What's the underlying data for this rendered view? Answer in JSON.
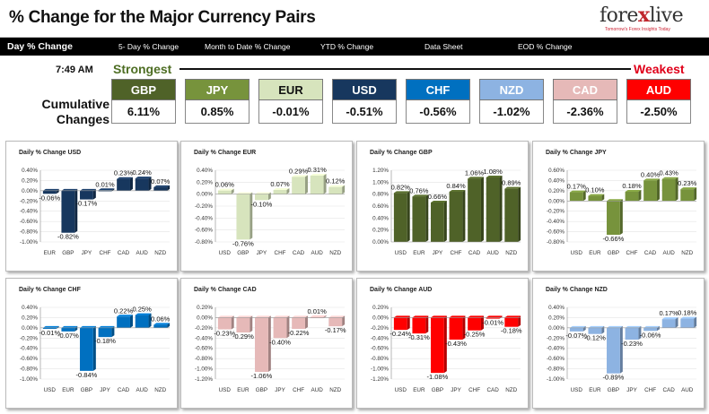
{
  "header": {
    "title": "% Change for the Major Currency Pairs",
    "logo_text_a": "fore",
    "logo_text_x": "x",
    "logo_text_b": "live",
    "logo_tagline": "Tomorrow's Forex Insights Today"
  },
  "nav": [
    {
      "label": "Day % Change",
      "active": true
    },
    {
      "label": "5- Day % Change",
      "active": false
    },
    {
      "label": "Month to Date % Change",
      "active": false
    },
    {
      "label": "YTD % Change",
      "active": false
    },
    {
      "label": "Data Sheet",
      "active": false
    },
    {
      "label": "EOD % Change",
      "active": false
    }
  ],
  "summary": {
    "time": "7:49 AM",
    "strongest_label": "Strongest",
    "weakest_label": "Weakest",
    "cumulative_label": "Cumulative Changes",
    "pairs": [
      {
        "code": "GBP",
        "value": "6.11%",
        "bg": "#4f6228",
        "fg": "#ffffff"
      },
      {
        "code": "JPY",
        "value": "0.85%",
        "bg": "#77933c",
        "fg": "#ffffff"
      },
      {
        "code": "EUR",
        "value": "-0.01%",
        "bg": "#d7e4bd",
        "fg": "#111111"
      },
      {
        "code": "USD",
        "value": "-0.51%",
        "bg": "#17375e",
        "fg": "#ffffff"
      },
      {
        "code": "CHF",
        "value": "-0.56%",
        "bg": "#0070c0",
        "fg": "#ffffff"
      },
      {
        "code": "NZD",
        "value": "-1.02%",
        "bg": "#8db3e2",
        "fg": "#ffffff"
      },
      {
        "code": "CAD",
        "value": "-2.36%",
        "bg": "#e6b9b8",
        "fg": "#ffffff"
      },
      {
        "code": "AUD",
        "value": "-2.50%",
        "bg": "#ff0000",
        "fg": "#ffffff"
      }
    ]
  },
  "chart_data": [
    {
      "type": "bar",
      "title": "Daily % Change USD",
      "categories": [
        "EUR",
        "GBP",
        "JPY",
        "CHF",
        "CAD",
        "AUD",
        "NZD"
      ],
      "values": [
        -0.06,
        -0.82,
        -0.17,
        0.01,
        0.23,
        0.24,
        0.07
      ],
      "labels": [
        "-0.06%",
        "-0.82%",
        "-0.17%",
        "0.01%",
        "0.23%",
        "0.24%",
        "0.07%"
      ],
      "ylim": [
        -1.0,
        0.4
      ],
      "yticks": [
        -1.0,
        -0.8,
        -0.6,
        -0.4,
        -0.2,
        0.0,
        0.2,
        0.4
      ],
      "ytick_labels": [
        "-1.00%",
        "-0.80%",
        "-0.60%",
        "-0.40%",
        "-0.20%",
        "0.00%",
        "0.20%",
        "0.40%"
      ],
      "color": "#17375e"
    },
    {
      "type": "bar",
      "title": "Daily % Change EUR",
      "categories": [
        "USD",
        "GBP",
        "JPY",
        "CHF",
        "CAD",
        "AUD",
        "NZD"
      ],
      "values": [
        0.06,
        -0.76,
        -0.1,
        0.07,
        0.29,
        0.31,
        0.12
      ],
      "labels": [
        "0.06%",
        "-0.76%",
        "-0.10%",
        "0.07%",
        "0.29%",
        "0.31%",
        "0.12%"
      ],
      "ylim": [
        -0.8,
        0.4
      ],
      "yticks": [
        -0.8,
        -0.6,
        -0.4,
        -0.2,
        0.0,
        0.2,
        0.4
      ],
      "ytick_labels": [
        "-0.80%",
        "-0.60%",
        "-0.40%",
        "-0.20%",
        "0.00%",
        "0.20%",
        "0.40%"
      ],
      "color": "#d7e4bd"
    },
    {
      "type": "bar",
      "title": "Daily % Change GBP",
      "categories": [
        "USD",
        "EUR",
        "JPY",
        "CHF",
        "CAD",
        "AUD",
        "NZD"
      ],
      "values": [
        0.82,
        0.76,
        0.66,
        0.84,
        1.06,
        1.08,
        0.89
      ],
      "labels": [
        "0.82%",
        "0.76%",
        "0.66%",
        "0.84%",
        "1.06%",
        "1.08%",
        "0.89%"
      ],
      "ylim": [
        0.0,
        1.2
      ],
      "yticks": [
        0.0,
        0.2,
        0.4,
        0.6,
        0.8,
        1.0,
        1.2
      ],
      "ytick_labels": [
        "0.00%",
        "0.20%",
        "0.40%",
        "0.60%",
        "0.80%",
        "1.00%",
        "1.20%"
      ],
      "color": "#4f6228"
    },
    {
      "type": "bar",
      "title": "Daily % Change JPY",
      "categories": [
        "USD",
        "EUR",
        "GBP",
        "CHF",
        "CAD",
        "AUD",
        "NZD"
      ],
      "values": [
        0.17,
        0.1,
        -0.66,
        0.18,
        0.4,
        0.43,
        0.23
      ],
      "labels": [
        "0.17%",
        "0.10%",
        "-0.66%",
        "0.18%",
        "0.40%",
        "0.43%",
        "0.23%"
      ],
      "ylim": [
        -0.8,
        0.6
      ],
      "yticks": [
        -0.8,
        -0.6,
        -0.4,
        -0.2,
        0.0,
        0.2,
        0.4,
        0.6
      ],
      "ytick_labels": [
        "-0.80%",
        "-0.60%",
        "-0.40%",
        "-0.20%",
        "0.00%",
        "0.20%",
        "0.40%",
        "0.60%"
      ],
      "color": "#77933c"
    },
    {
      "type": "bar",
      "title": "Daily % Change CHF",
      "categories": [
        "USD",
        "EUR",
        "GBP",
        "JPY",
        "CAD",
        "AUD",
        "NZD"
      ],
      "values": [
        -0.01,
        -0.07,
        -0.84,
        -0.18,
        0.22,
        0.25,
        0.06
      ],
      "labels": [
        "-0.01%",
        "-0.07%",
        "-0.84%",
        "-0.18%",
        "0.22%",
        "0.25%",
        "0.06%"
      ],
      "ylim": [
        -1.0,
        0.4
      ],
      "yticks": [
        -1.0,
        -0.8,
        -0.6,
        -0.4,
        -0.2,
        0.0,
        0.2,
        0.4
      ],
      "ytick_labels": [
        "-1.00%",
        "-0.80%",
        "-0.60%",
        "-0.40%",
        "-0.20%",
        "0.00%",
        "0.20%",
        "0.40%"
      ],
      "color": "#0070c0"
    },
    {
      "type": "bar",
      "title": "Daily % Change CAD",
      "categories": [
        "USD",
        "EUR",
        "GBP",
        "JPY",
        "CHF",
        "AUD",
        "NZD"
      ],
      "values": [
        -0.23,
        -0.29,
        -1.06,
        -0.4,
        -0.22,
        0.01,
        -0.17
      ],
      "labels": [
        "-0.23%",
        "-0.29%",
        "-1.06%",
        "-0.40%",
        "-0.22%",
        "0.01%",
        "-0.17%"
      ],
      "ylim": [
        -1.2,
        0.2
      ],
      "yticks": [
        -1.2,
        -1.0,
        -0.8,
        -0.6,
        -0.4,
        -0.2,
        0.0,
        0.2
      ],
      "ytick_labels": [
        "-1.20%",
        "-1.00%",
        "-0.80%",
        "-0.60%",
        "-0.40%",
        "-0.20%",
        "0.00%",
        "0.20%"
      ],
      "color": "#e6b9b8"
    },
    {
      "type": "bar",
      "title": "Daily % Change AUD",
      "categories": [
        "USD",
        "EUR",
        "GBP",
        "JPY",
        "CHF",
        "CAD",
        "NZD"
      ],
      "values": [
        -0.24,
        -0.31,
        -1.08,
        -0.43,
        -0.25,
        -0.01,
        -0.18
      ],
      "labels": [
        "-0.24%",
        "-0.31%",
        "-1.08%",
        "-0.43%",
        "-0.25%",
        "-0.01%",
        "-0.18%"
      ],
      "ylim": [
        -1.2,
        0.2
      ],
      "yticks": [
        -1.2,
        -1.0,
        -0.8,
        -0.6,
        -0.4,
        -0.2,
        0.0,
        0.2
      ],
      "ytick_labels": [
        "-1.20%",
        "-1.00%",
        "-0.80%",
        "-0.60%",
        "-0.40%",
        "-0.20%",
        "0.00%",
        "0.20%"
      ],
      "color": "#ff0000"
    },
    {
      "type": "bar",
      "title": "Daily % Change NZD",
      "categories": [
        "USD",
        "EUR",
        "GBP",
        "JPY",
        "CHF",
        "CAD",
        "AUD"
      ],
      "values": [
        -0.07,
        -0.12,
        -0.89,
        -0.23,
        -0.06,
        0.17,
        0.18
      ],
      "labels": [
        "-0.07%",
        "-0.12%",
        "-0.89%",
        "-0.23%",
        "-0.06%",
        "0.17%",
        "0.18%"
      ],
      "ylim": [
        -1.0,
        0.4
      ],
      "yticks": [
        -1.0,
        -0.8,
        -0.6,
        -0.4,
        -0.2,
        0.0,
        0.2,
        0.4
      ],
      "ytick_labels": [
        "-1.00%",
        "-0.80%",
        "-0.60%",
        "-0.40%",
        "-0.20%",
        "0.00%",
        "0.20%",
        "0.40%"
      ],
      "color": "#8db3e2"
    }
  ]
}
